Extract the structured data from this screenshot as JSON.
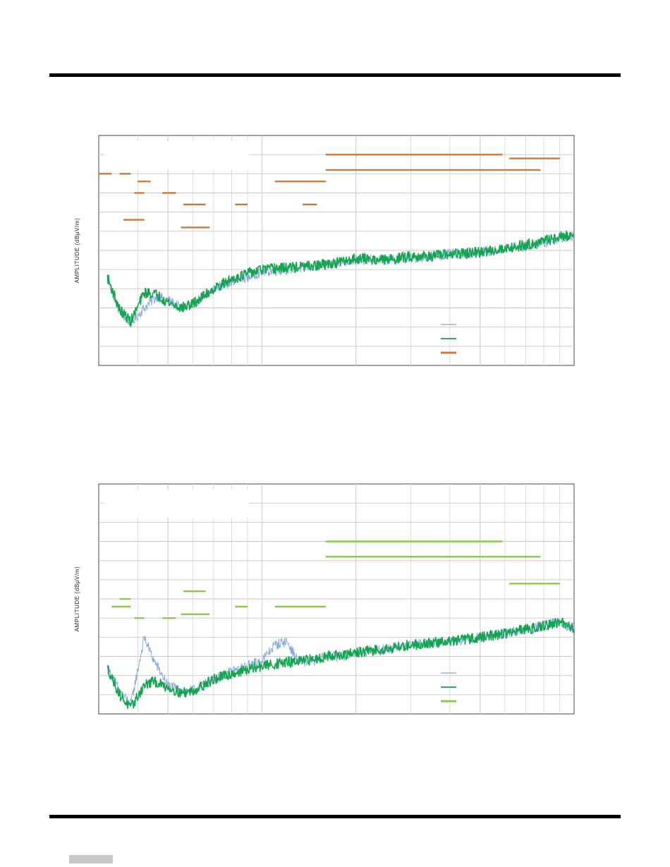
{
  "page": {
    "footer_tab_color": "#c8c8c8"
  },
  "chart_data": [
    {
      "type": "line",
      "ylabel": "AMPLITUDE (dBμV/m)",
      "grid": true,
      "x_scale": "log",
      "xlim": [
        30,
        1000
      ],
      "ylim": [
        0,
        12
      ],
      "legend_placement": "bottom-right",
      "series": [
        {
          "color": "#7fa7dc",
          "x": [
            32,
            35,
            38,
            42,
            46,
            50,
            55,
            60,
            70,
            80,
            90,
            100,
            120,
            150,
            180,
            200,
            250,
            300,
            350,
            400,
            500,
            600,
            700,
            800,
            900,
            1000
          ],
          "y": [
            4.5,
            2.8,
            2.2,
            3.0,
            3.6,
            3.4,
            3.0,
            3.2,
            4.0,
            4.4,
            4.6,
            4.9,
            5.0,
            5.2,
            5.4,
            5.5,
            5.5,
            5.6,
            5.7,
            5.8,
            5.9,
            6.1,
            6.2,
            6.4,
            6.6,
            6.8
          ]
        },
        {
          "color": "#12a54e",
          "x": [
            32,
            35,
            38,
            42,
            46,
            50,
            55,
            60,
            70,
            80,
            90,
            100,
            120,
            150,
            180,
            200,
            250,
            300,
            350,
            400,
            500,
            600,
            700,
            800,
            900,
            1000
          ],
          "y": [
            4.6,
            2.9,
            2.3,
            3.8,
            3.7,
            3.3,
            3.0,
            3.2,
            4.0,
            4.5,
            4.8,
            5.0,
            5.1,
            5.2,
            5.4,
            5.6,
            5.5,
            5.7,
            5.7,
            5.8,
            5.9,
            6.1,
            6.3,
            6.5,
            6.7,
            6.8
          ]
        }
      ],
      "limits": {
        "color": "#cc7a3c",
        "segments": [
          {
            "x": [
              30,
              33
            ],
            "y": 10.0
          },
          {
            "x": [
              35,
              38
            ],
            "y": 10.0
          },
          {
            "x": [
              40,
              44
            ],
            "y": 9.6
          },
          {
            "x": [
              39,
              42
            ],
            "y": 9.0
          },
          {
            "x": [
              48,
              53
            ],
            "y": 9.0
          },
          {
            "x": [
              36,
              42
            ],
            "y": 7.6
          },
          {
            "x": [
              56,
              66
            ],
            "y": 8.4
          },
          {
            "x": [
              55,
              68
            ],
            "y": 7.2
          },
          {
            "x": [
              82,
              90
            ],
            "y": 8.4
          },
          {
            "x": [
              110,
              160
            ],
            "y": 9.6
          },
          {
            "x": [
              135,
              150
            ],
            "y": 8.4
          },
          {
            "x": [
              160,
              590
            ],
            "y": 11.0
          },
          {
            "x": [
              160,
              780
            ],
            "y": 10.2
          },
          {
            "x": [
              620,
              900
            ],
            "y": 10.8
          }
        ]
      }
    },
    {
      "type": "line",
      "ylabel": "AMPLITUDE (dBμV/m)",
      "grid": true,
      "x_scale": "log",
      "xlim": [
        30,
        1000
      ],
      "ylim": [
        0,
        12
      ],
      "legend_placement": "bottom-right",
      "series": [
        {
          "color": "#7fa7dc",
          "x": [
            32,
            35,
            38,
            42,
            45,
            48,
            50,
            55,
            60,
            70,
            80,
            90,
            100,
            110,
            120,
            130,
            140,
            150,
            160,
            170,
            180,
            200,
            250,
            300,
            400,
            500,
            600,
            700,
            800,
            900,
            950,
            1000
          ],
          "y": [
            2.4,
            1.2,
            0.5,
            4.0,
            2.8,
            2.0,
            1.5,
            1.2,
            1.2,
            1.8,
            2.2,
            2.5,
            2.8,
            3.6,
            3.8,
            2.8,
            2.7,
            2.8,
            3.0,
            3.0,
            3.0,
            3.2,
            3.4,
            3.6,
            3.8,
            4.0,
            4.2,
            4.4,
            4.6,
            4.8,
            4.6,
            4.5
          ]
        },
        {
          "color": "#12a54e",
          "x": [
            32,
            35,
            38,
            42,
            45,
            48,
            50,
            55,
            60,
            70,
            80,
            90,
            100,
            110,
            120,
            130,
            140,
            150,
            160,
            170,
            180,
            200,
            250,
            300,
            400,
            500,
            600,
            700,
            800,
            900,
            950,
            1000
          ],
          "y": [
            2.4,
            1.0,
            0.3,
            1.5,
            1.7,
            1.5,
            1.4,
            1.1,
            1.2,
            1.8,
            2.1,
            2.3,
            2.5,
            2.6,
            2.7,
            2.7,
            2.8,
            2.9,
            3.0,
            3.1,
            3.0,
            3.2,
            3.4,
            3.6,
            3.8,
            4.0,
            4.2,
            4.4,
            4.6,
            4.8,
            4.6,
            4.5
          ]
        }
      ],
      "limits": {
        "color": "#8dc84f",
        "segments": [
          {
            "x": [
              35,
              38
            ],
            "y": 6.0
          },
          {
            "x": [
              33,
              38
            ],
            "y": 5.6
          },
          {
            "x": [
              39,
              42
            ],
            "y": 5.0
          },
          {
            "x": [
              48,
              53
            ],
            "y": 5.0
          },
          {
            "x": [
              56,
              66
            ],
            "y": 6.4
          },
          {
            "x": [
              55,
              68
            ],
            "y": 5.2
          },
          {
            "x": [
              82,
              90
            ],
            "y": 5.6
          },
          {
            "x": [
              110,
              160
            ],
            "y": 5.6
          },
          {
            "x": [
              160,
              590
            ],
            "y": 9.0
          },
          {
            "x": [
              160,
              780
            ],
            "y": 8.2
          },
          {
            "x": [
              620,
              900
            ],
            "y": 6.8
          }
        ]
      }
    }
  ]
}
